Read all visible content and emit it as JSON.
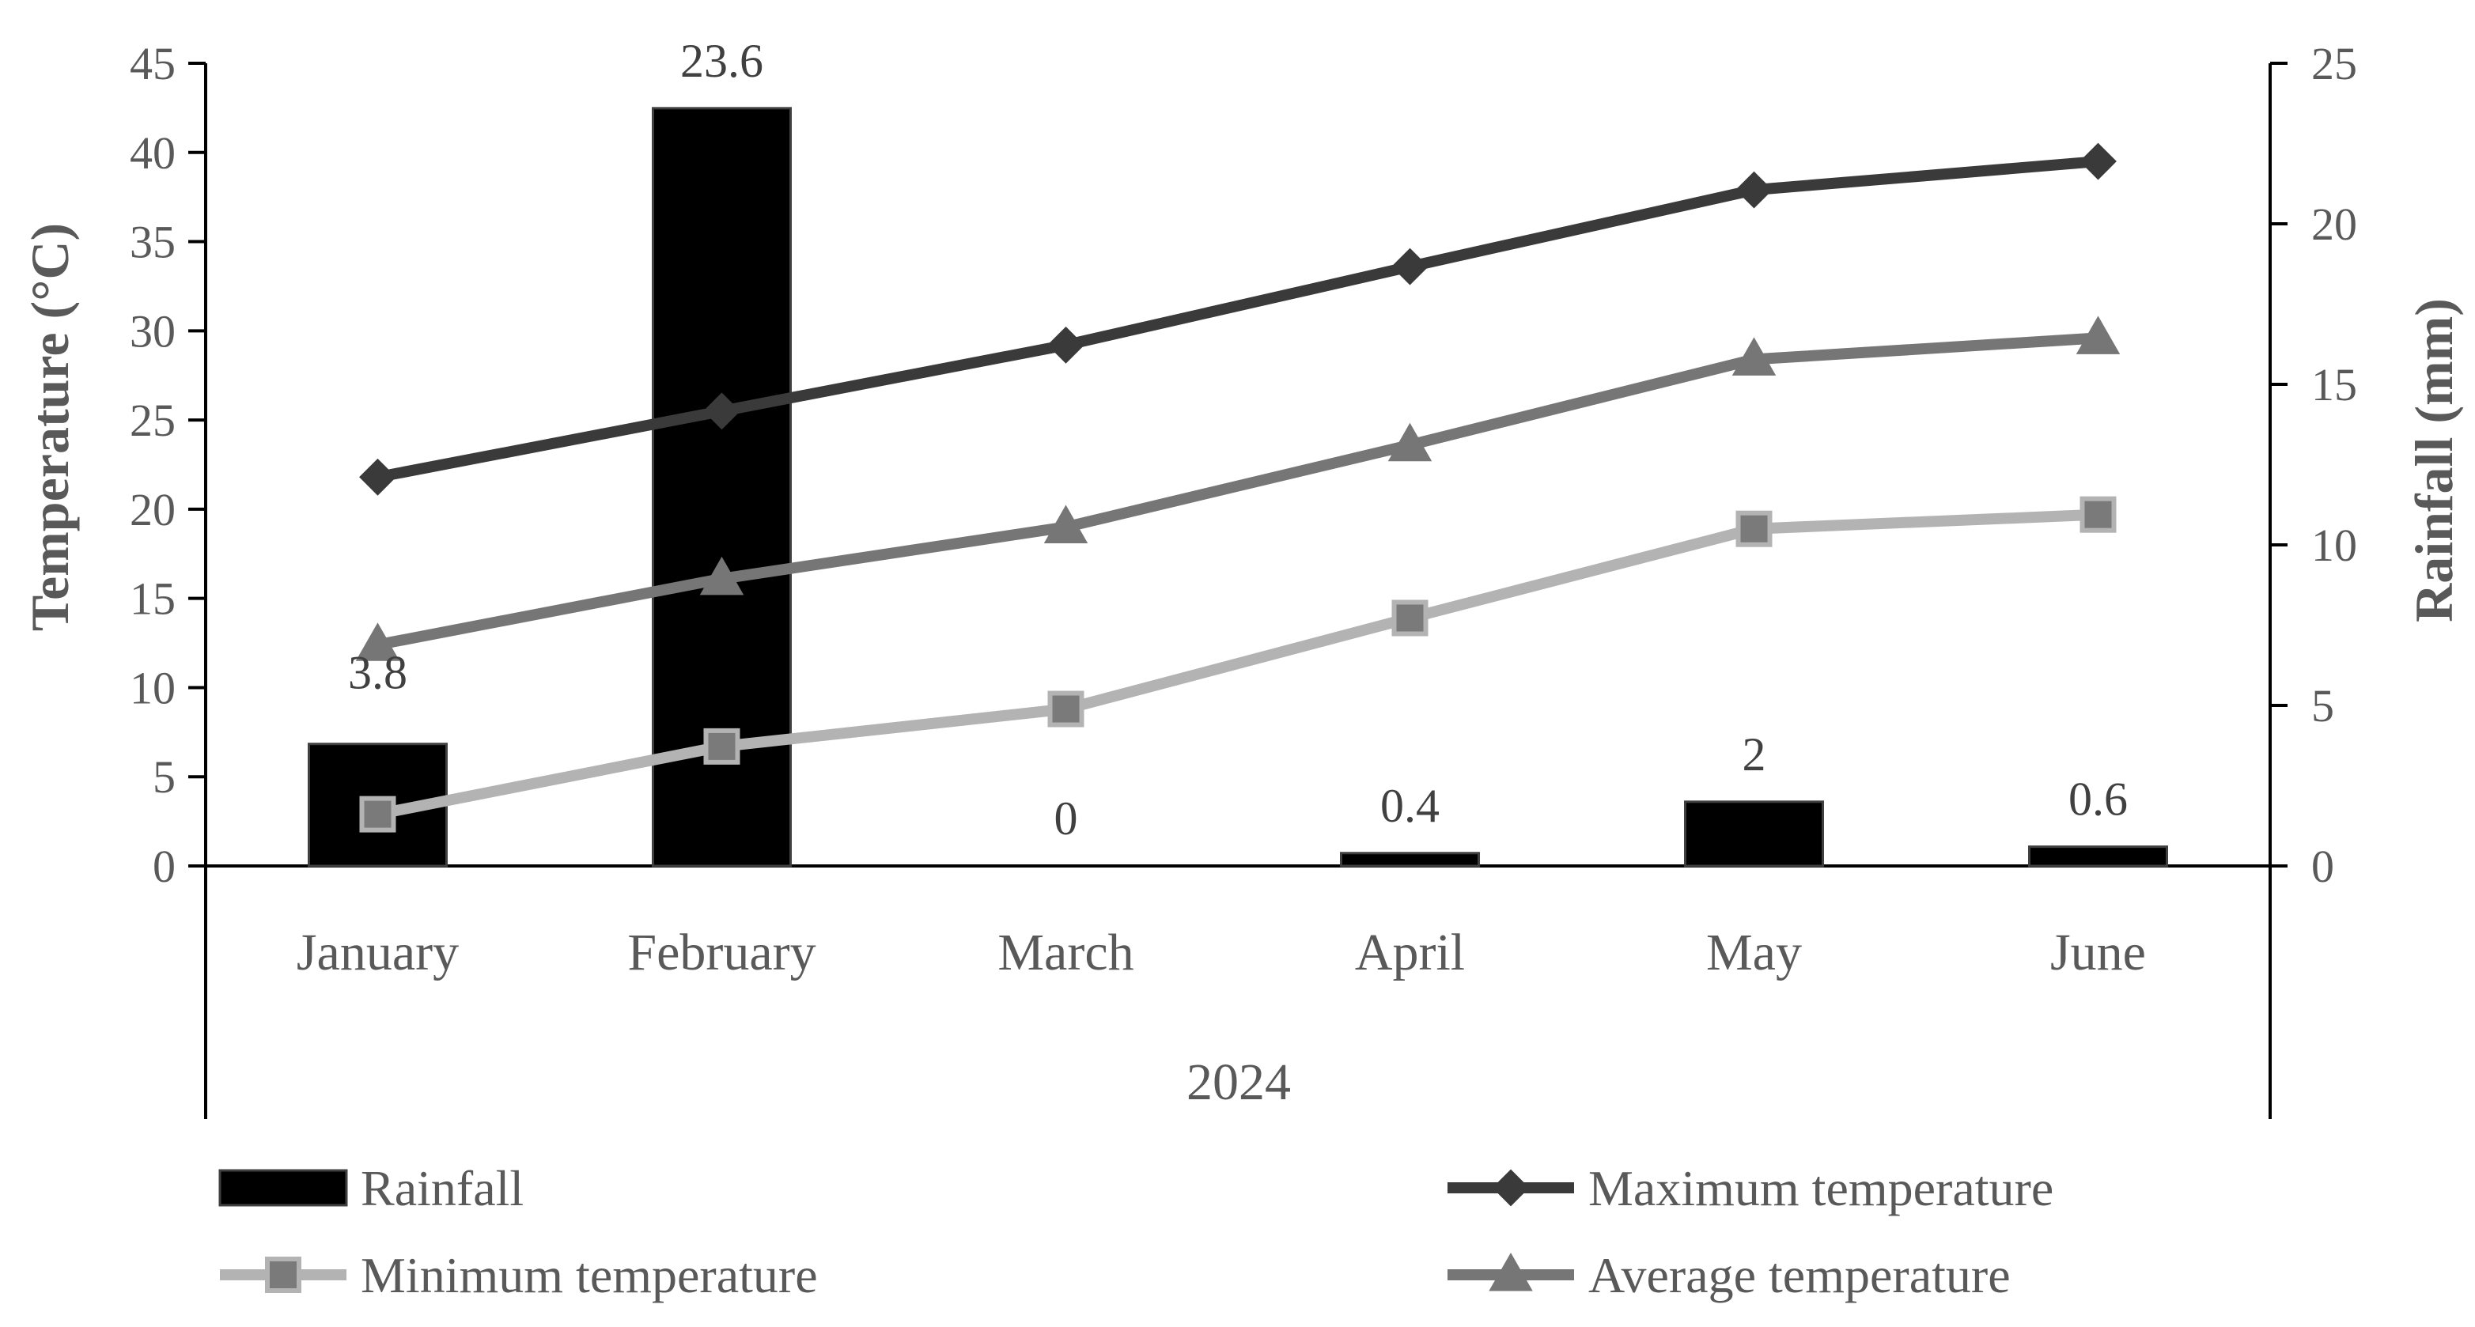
{
  "chart_data": {
    "type": "bar",
    "title": "",
    "group_label": "2024",
    "categories": [
      "January",
      "February",
      "March",
      "April",
      "May",
      "June"
    ],
    "y_left": {
      "label": "Temperature  (°C)",
      "range": [
        0,
        45
      ],
      "ticks": [
        "0",
        "5",
        "10",
        "15",
        "20",
        "25",
        "30",
        "35",
        "40",
        "45"
      ]
    },
    "y_right": {
      "label": "Rainfall (mm)",
      "range": [
        0,
        25
      ],
      "ticks": [
        "0",
        "5",
        "10",
        "15",
        "20",
        "25"
      ]
    },
    "series": [
      {
        "name": "Rainfall",
        "type": "bar",
        "axis": "right",
        "color": "#000000",
        "values": [
          3.8,
          23.6,
          0,
          0.4,
          2,
          0.6
        ],
        "data_labels": [
          "3.8",
          "23.6",
          "0",
          "0.4",
          "2",
          "0.6"
        ]
      },
      {
        "name": "Maximum temperature",
        "type": "line",
        "axis": "left",
        "color": "#3a3a3a",
        "marker": "diamond",
        "values": [
          21.8,
          25.5,
          29.2,
          33.6,
          37.9,
          39.5
        ]
      },
      {
        "name": "Minimum temperature",
        "type": "line",
        "axis": "left",
        "color": "#b3b3b3",
        "marker_color": "#7a7a7a",
        "marker": "square",
        "values": [
          2.9,
          6.7,
          8.8,
          13.9,
          18.9,
          19.7
        ]
      },
      {
        "name": "Average temperature",
        "type": "line",
        "axis": "left",
        "color": "#767676",
        "marker": "triangle",
        "values": [
          12.4,
          16.1,
          19.0,
          23.6,
          28.4,
          29.6
        ]
      }
    ],
    "legend_position": "bottom",
    "grid": false
  }
}
